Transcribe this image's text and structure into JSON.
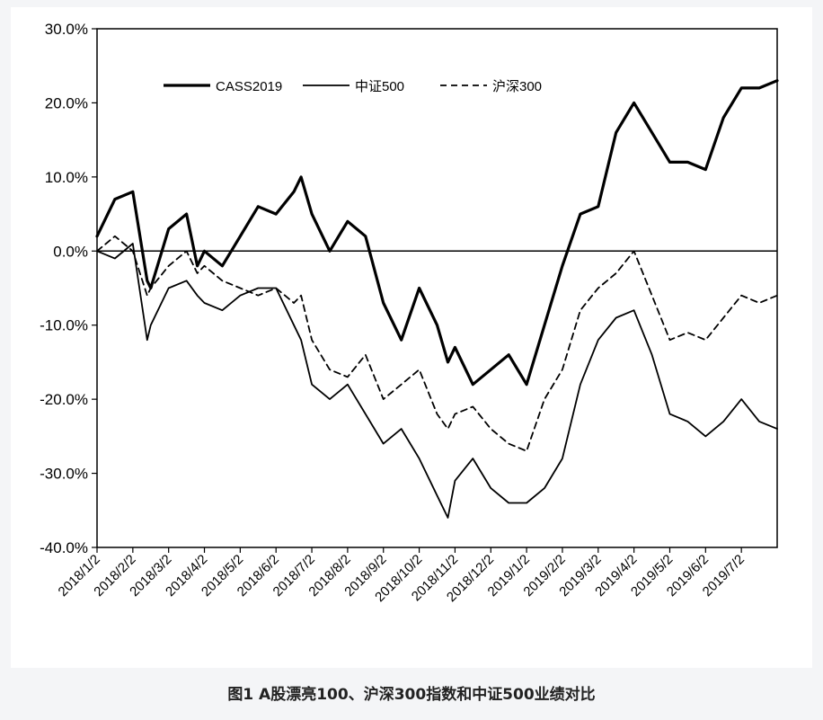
{
  "caption": "图1  A股漂亮100、沪深300指数和中证500业绩对比",
  "chart_data": {
    "type": "line",
    "title": "",
    "xlabel": "",
    "ylabel": "",
    "x_ticks": [
      "2018/1/2",
      "2018/2/2",
      "2018/3/2",
      "2018/4/2",
      "2018/5/2",
      "2018/6/2",
      "2018/7/2",
      "2018/8/2",
      "2018/9/2",
      "2018/10/2",
      "2018/11/2",
      "2018/12/2",
      "2019/1/2",
      "2019/2/2",
      "2019/3/2",
      "2019/4/2",
      "2019/5/2",
      "2019/6/2",
      "2019/7/2"
    ],
    "y_ticks": [
      "30.0%",
      "20.0%",
      "10.0%",
      "0.0%",
      "-10.0%",
      "-20.0%",
      "-30.0%",
      "-40.0%"
    ],
    "ylim": [
      -40,
      30
    ],
    "xlim": [
      0,
      19
    ],
    "grid": false,
    "legend_position": "top-left",
    "x_index": [
      0,
      0.5,
      1,
      1.4,
      1.5,
      2,
      2.5,
      2.8,
      3,
      3.5,
      4,
      4.5,
      5,
      5.5,
      5.7,
      6,
      6.5,
      7,
      7.5,
      8,
      8.5,
      9,
      9.5,
      9.8,
      10,
      10.5,
      11,
      11.5,
      12,
      12.5,
      13,
      13.5,
      14,
      14.5,
      15,
      15.5,
      16,
      16.5,
      17,
      17.5,
      18,
      18.5,
      19
    ],
    "series": [
      {
        "name": "CASS2019",
        "style": "thick-solid",
        "values": [
          2,
          7,
          8,
          -4,
          -5,
          3,
          5,
          -2,
          0,
          -2,
          2,
          6,
          5,
          8,
          10,
          5,
          0,
          4,
          2,
          -7,
          -12,
          -5,
          -10,
          -15,
          -13,
          -18,
          -16,
          -14,
          -18,
          -10,
          -2,
          5,
          6,
          16,
          20,
          16,
          12,
          12,
          11,
          18,
          22,
          22,
          23
        ]
      },
      {
        "name": "中证500",
        "style": "thin-solid",
        "values": [
          0,
          -1,
          1,
          -12,
          -10,
          -5,
          -4,
          -6,
          -7,
          -8,
          -6,
          -5,
          -5,
          -10,
          -12,
          -18,
          -20,
          -18,
          -22,
          -26,
          -24,
          -28,
          -33,
          -36,
          -31,
          -28,
          -32,
          -34,
          -34,
          -32,
          -28,
          -18,
          -12,
          -9,
          -8,
          -14,
          -22,
          -23,
          -25,
          -23,
          -20,
          -23,
          -24
        ]
      },
      {
        "name": "沪深300",
        "style": "dashed",
        "values": [
          0,
          2,
          0,
          -6,
          -5,
          -2,
          0,
          -3,
          -2,
          -4,
          -5,
          -6,
          -5,
          -7,
          -6,
          -12,
          -16,
          -17,
          -14,
          -20,
          -18,
          -16,
          -22,
          -24,
          -22,
          -21,
          -24,
          -26,
          -27,
          -20,
          -16,
          -8,
          -5,
          -3,
          0,
          -6,
          -12,
          -11,
          -12,
          -9,
          -6,
          -7,
          -6
        ]
      }
    ]
  }
}
